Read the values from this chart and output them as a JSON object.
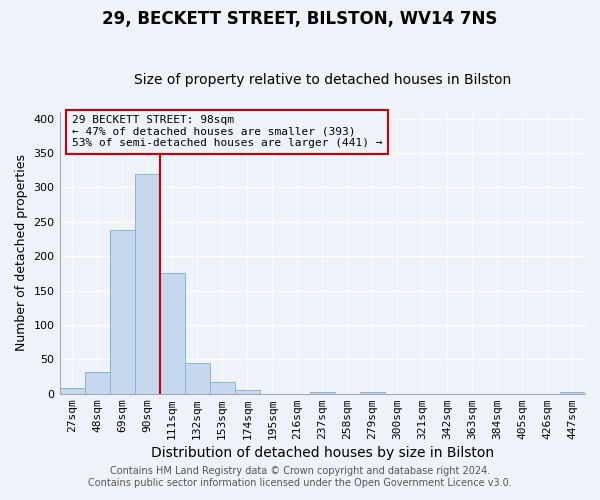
{
  "title": "29, BECKETT STREET, BILSTON, WV14 7NS",
  "subtitle": "Size of property relative to detached houses in Bilston",
  "xlabel": "Distribution of detached houses by size in Bilston",
  "ylabel": "Number of detached properties",
  "bar_labels": [
    "27sqm",
    "48sqm",
    "69sqm",
    "90sqm",
    "111sqm",
    "132sqm",
    "153sqm",
    "174sqm",
    "195sqm",
    "216sqm",
    "237sqm",
    "258sqm",
    "279sqm",
    "300sqm",
    "321sqm",
    "342sqm",
    "363sqm",
    "384sqm",
    "405sqm",
    "426sqm",
    "447sqm"
  ],
  "bar_values": [
    8,
    32,
    238,
    320,
    175,
    45,
    17,
    5,
    0,
    0,
    3,
    0,
    2,
    0,
    0,
    0,
    0,
    0,
    0,
    0,
    2
  ],
  "bar_color": "#c5d8ee",
  "bar_edge_color": "#8ab4d4",
  "vline_color": "#cc0000",
  "annotation_text": "29 BECKETT STREET: 98sqm\n← 47% of detached houses are smaller (393)\n53% of semi-detached houses are larger (441) →",
  "ylim": [
    0,
    410
  ],
  "yticks": [
    0,
    50,
    100,
    150,
    200,
    250,
    300,
    350,
    400
  ],
  "footer_line1": "Contains HM Land Registry data © Crown copyright and database right 2024.",
  "footer_line2": "Contains public sector information licensed under the Open Government Licence v3.0.",
  "background_color": "#eef2fa",
  "grid_color": "#ffffff",
  "title_fontsize": 12,
  "subtitle_fontsize": 10,
  "xlabel_fontsize": 10,
  "ylabel_fontsize": 9,
  "annotation_fontsize": 8,
  "footer_fontsize": 7,
  "tick_fontsize": 8
}
